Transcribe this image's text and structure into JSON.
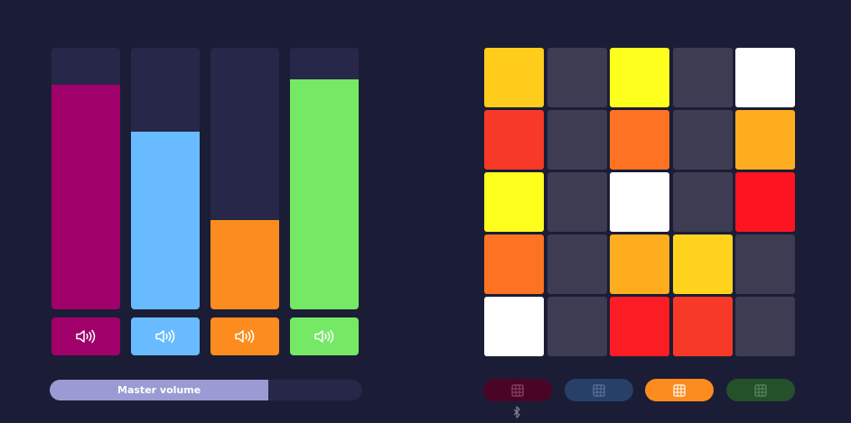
{
  "colors": {
    "background": "#1b1d36",
    "track": "#262749",
    "pad_off": "#3d3c53",
    "white": "#ffffff"
  },
  "faders": [
    {
      "name": "channel-1",
      "level": 0.86,
      "color": "#a0006a",
      "mute_icon": "speaker-icon"
    },
    {
      "name": "channel-2",
      "level": 0.68,
      "color": "#69bbff",
      "mute_icon": "speaker-icon"
    },
    {
      "name": "channel-3",
      "level": 0.34,
      "color": "#fd8c1f",
      "mute_icon": "speaker-icon"
    },
    {
      "name": "channel-4",
      "level": 0.88,
      "color": "#75e866",
      "mute_icon": "speaker-icon"
    }
  ],
  "master": {
    "label": "Master volume",
    "level": 0.7,
    "fill_color": "#9a9bd3",
    "track_color": "#262749"
  },
  "pads": [
    [
      "#ffcc1c",
      "#3d3c53",
      "#ffff1e",
      "#3d3c53",
      "#ffffff"
    ],
    [
      "#f73928",
      "#3d3c53",
      "#fd7323",
      "#3d3c53",
      "#fead1e"
    ],
    [
      "#ffff1e",
      "#3d3c53",
      "#ffffff",
      "#3d3c53",
      "#fc1421"
    ],
    [
      "#fd7323",
      "#3d3c53",
      "#fead1e",
      "#ffd31d",
      "#3d3c53"
    ],
    [
      "#ffffff",
      "#3d3c53",
      "#fc1c23",
      "#f73928",
      "#3d3c53"
    ]
  ],
  "banks": [
    {
      "name": "bank-1",
      "bg": "#4a0526",
      "icon_color": "#8a4a62",
      "icon": "grid-icon",
      "active": false
    },
    {
      "name": "bank-2",
      "bg": "#274067",
      "icon_color": "#5d7498",
      "icon": "grid-icon",
      "active": false
    },
    {
      "name": "bank-3",
      "bg": "#fd8c1f",
      "icon_color": "#ffffff",
      "icon": "grid-icon",
      "active": true
    },
    {
      "name": "bank-4",
      "bg": "#24502a",
      "icon_color": "#5b8a5d",
      "icon": "grid-icon",
      "active": false
    }
  ],
  "bluetooth_icon": "bluetooth-icon"
}
